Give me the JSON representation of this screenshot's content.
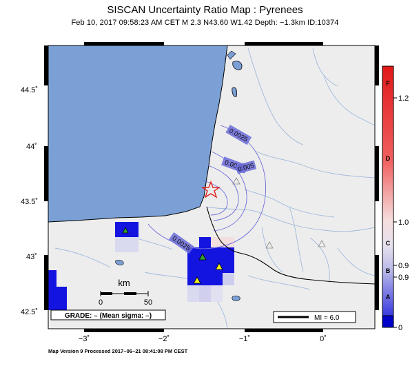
{
  "header": {
    "title": "SISCAN Uncertainty Ratio Map : Pyrenees",
    "subtitle": "Feb 10, 2017 09:58:23 AM CET   M 2.3    N43.60 W1.42   Depth: −1.3km   ID:10374"
  },
  "footer": {
    "text": "Map Version 9 Processed 2017−06−21 08:41:08 PM CEST"
  },
  "map": {
    "lat_ticks": [
      "44.5˚",
      "44˚",
      "43.5˚",
      "43˚",
      "42.5˚"
    ],
    "lon_ticks": [
      "−3˚",
      "−2˚",
      "−1˚",
      "0˚"
    ],
    "contour_labels": [
      "0.0025",
      "0.0025",
      "0.0025",
      "0.005"
    ],
    "epicenter": {
      "lat": 43.6,
      "lon": -1.42,
      "symbol": "star-icon"
    },
    "colors": {
      "sea": "#7ba0d6",
      "land": "#ededed",
      "epicenter": "#e02020",
      "grid_high": "#1414e0"
    }
  },
  "scale_bar": {
    "unit": "km",
    "labels": [
      "0",
      "50"
    ]
  },
  "grade_box": {
    "text": "GRADE: – (Mean sigma: –)"
  },
  "mi_legend": {
    "text": "MI = 6.0"
  },
  "colorbar": {
    "letters": [
      "F",
      "D",
      "C",
      "B",
      "A"
    ],
    "values": [
      "1.2",
      "1.0",
      "0.9",
      "0.9",
      "0"
    ],
    "colors": [
      "#e21a1a",
      "#f3c6c6",
      "#d8d8ee",
      "#2222d8"
    ]
  }
}
